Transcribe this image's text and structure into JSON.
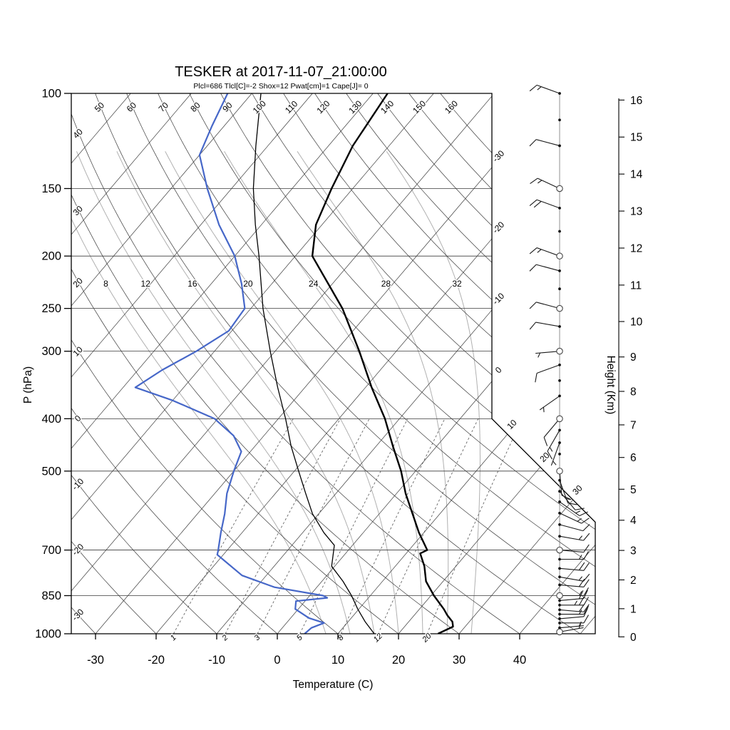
{
  "header": {
    "title": "TESKER at 2017-11-07_21:00:00",
    "subtitle": "Plcl=686 Tlcl[C]=-2 Shox=12 Pwat[cm]=1 Cape[J]= 0"
  },
  "axes": {
    "x_title": "Temperature (C)",
    "y_left_title": "P (hPa)",
    "y_right_title": "Height (Km)",
    "pressure_ticks": [
      100,
      150,
      200,
      250,
      300,
      400,
      500,
      700,
      850,
      1000
    ],
    "temperature_ticks": [
      -30,
      -20,
      -10,
      0,
      10,
      20,
      30,
      40
    ],
    "height_ticks_km": [
      0,
      1,
      2,
      3,
      4,
      5,
      6,
      7,
      8,
      9,
      10,
      11,
      12,
      13,
      14,
      15,
      16
    ]
  },
  "chart_data": {
    "type": "skewt_logp_sounding",
    "station": "TESKER",
    "valid_time": "2017-11-07_21:00:00",
    "pressure_range_hpa": [
      100,
      1000
    ],
    "temperature_axis_range_c": [
      -30,
      40
    ],
    "skew_deg": 45,
    "isotherms_c": {
      "min": -100,
      "max": 50,
      "step": 10
    },
    "isotherm_labels_right_edge": [
      -30,
      -20,
      -10,
      0
    ],
    "isotherm_labels_diagonal_edge": [
      10,
      20,
      30
    ],
    "dry_adiabats_c": {
      "min": -30,
      "max": 160,
      "step": 10
    },
    "dry_adiabat_labels_top_edge": [
      50,
      60,
      70,
      80,
      90,
      100,
      110,
      120,
      130,
      140,
      150,
      160
    ],
    "dry_adiabat_labels_left_edge": [
      40,
      30,
      20,
      10,
      0,
      -10,
      -20,
      -30
    ],
    "moist_adiabats_c": [
      8,
      12,
      16,
      20,
      24,
      28,
      32
    ],
    "mixing_ratio_g_kg": [
      1,
      2,
      3,
      5,
      8,
      12,
      20
    ],
    "temperature_profile": [
      [
        1000,
        26.5
      ],
      [
        970,
        28.0
      ],
      [
        950,
        27.2
      ],
      [
        925,
        25.5
      ],
      [
        900,
        24.0
      ],
      [
        850,
        20.5
      ],
      [
        800,
        17.2
      ],
      [
        750,
        14.8
      ],
      [
        710,
        12.3
      ],
      [
        700,
        13.0
      ],
      [
        650,
        9.2
      ],
      [
        600,
        5.5
      ],
      [
        550,
        1.5
      ],
      [
        500,
        -2.4
      ],
      [
        450,
        -7.2
      ],
      [
        400,
        -12.4
      ],
      [
        350,
        -19.0
      ],
      [
        300,
        -26.1
      ],
      [
        250,
        -34.9
      ],
      [
        200,
        -47.2
      ],
      [
        175,
        -51.0
      ],
      [
        150,
        -53.5
      ],
      [
        125,
        -56.0
      ],
      [
        100,
        -57.6
      ]
    ],
    "dewpoint_profile": [
      [
        1000,
        4.5
      ],
      [
        975,
        4.8
      ],
      [
        955,
        6.2
      ],
      [
        935,
        3.0
      ],
      [
        900,
        -0.5
      ],
      [
        870,
        -1.5
      ],
      [
        858,
        3.2
      ],
      [
        850,
        2.2
      ],
      [
        820,
        -7.0
      ],
      [
        780,
        -14.0
      ],
      [
        714,
        -21.0
      ],
      [
        700,
        -21.5
      ],
      [
        650,
        -23.5
      ],
      [
        600,
        -25.5
      ],
      [
        550,
        -28.0
      ],
      [
        500,
        -30.0
      ],
      [
        460,
        -31.5
      ],
      [
        430,
        -35.0
      ],
      [
        400,
        -40.5
      ],
      [
        370,
        -50.0
      ],
      [
        350,
        -58.0
      ],
      [
        325,
        -56.0
      ],
      [
        300,
        -53.0
      ],
      [
        275,
        -50.5
      ],
      [
        250,
        -51.0
      ],
      [
        225,
        -55.0
      ],
      [
        200,
        -60.0
      ],
      [
        175,
        -67.0
      ],
      [
        150,
        -74.0
      ],
      [
        130,
        -80.0
      ],
      [
        115,
        -82.0
      ],
      [
        100,
        -84.0
      ]
    ],
    "parcel_profile": [
      [
        1000,
        16.0
      ],
      [
        950,
        12.8
      ],
      [
        900,
        9.8
      ],
      [
        850,
        6.9
      ],
      [
        800,
        3.5
      ],
      [
        750,
        -0.5
      ],
      [
        686,
        -3.0
      ],
      [
        650,
        -6.5
      ],
      [
        600,
        -11.0
      ],
      [
        550,
        -15.0
      ],
      [
        500,
        -19.3
      ],
      [
        450,
        -24.0
      ],
      [
        400,
        -28.8
      ],
      [
        350,
        -34.5
      ],
      [
        300,
        -40.8
      ],
      [
        250,
        -48.0
      ],
      [
        200,
        -56.0
      ],
      [
        175,
        -61.0
      ],
      [
        150,
        -66.4
      ],
      [
        125,
        -72.0
      ],
      [
        100,
        -78.5
      ]
    ],
    "winds_p_dir_kt": [
      [
        100,
        290,
        15
      ],
      [
        112,
        0,
        0
      ],
      [
        125,
        285,
        10
      ],
      [
        150,
        295,
        15
      ],
      [
        163,
        290,
        20
      ],
      [
        180,
        0,
        0
      ],
      [
        200,
        290,
        15
      ],
      [
        213,
        285,
        10
      ],
      [
        230,
        0,
        0
      ],
      [
        250,
        285,
        10
      ],
      [
        270,
        280,
        10
      ],
      [
        300,
        265,
        5
      ],
      [
        318,
        250,
        10
      ],
      [
        340,
        0,
        0
      ],
      [
        363,
        235,
        5
      ],
      [
        400,
        220,
        10
      ],
      [
        420,
        210,
        15
      ],
      [
        443,
        200,
        5
      ],
      [
        465,
        0,
        0
      ],
      [
        500,
        175,
        10
      ],
      [
        520,
        160,
        15
      ],
      [
        545,
        140,
        10
      ],
      [
        570,
        125,
        15
      ],
      [
        598,
        115,
        15
      ],
      [
        628,
        105,
        10
      ],
      [
        660,
        100,
        15
      ],
      [
        700,
        95,
        10
      ],
      [
        728,
        90,
        15
      ],
      [
        757,
        95,
        20
      ],
      [
        785,
        100,
        15
      ],
      [
        812,
        95,
        20
      ],
      [
        850,
        90,
        15
      ],
      [
        868,
        85,
        20
      ],
      [
        885,
        90,
        25
      ],
      [
        903,
        95,
        20
      ],
      [
        920,
        90,
        15
      ],
      [
        938,
        85,
        10
      ],
      [
        955,
        90,
        10
      ],
      [
        975,
        85,
        5
      ],
      [
        992,
        80,
        5
      ]
    ],
    "wind_circle_levels_hpa": [
      150,
      200,
      250,
      300,
      400,
      500,
      700,
      850,
      992
    ],
    "colors": {
      "temperature": "#000000",
      "dewpoint": "#4667c8",
      "parcel": "#000000",
      "subtitle": "#b0361d",
      "background_lines": "#3a3a3a",
      "moist_adiabat": "#b0b0b0",
      "mixing_ratio": "#666666",
      "wind": "#1a1a1a"
    }
  }
}
